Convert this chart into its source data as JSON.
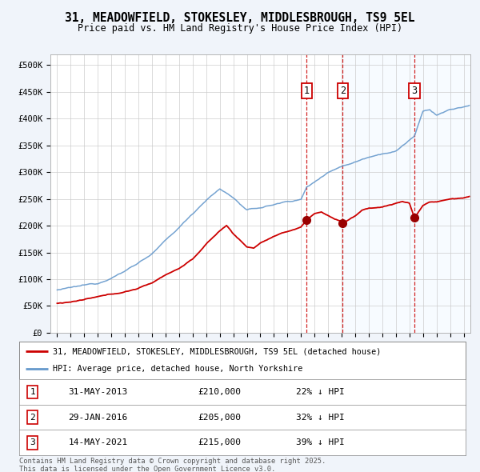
{
  "title": "31, MEADOWFIELD, STOKESLEY, MIDDLESBROUGH, TS9 5EL",
  "subtitle": "Price paid vs. HM Land Registry's House Price Index (HPI)",
  "background_color": "#f0f4fa",
  "plot_bg_color": "#ffffff",
  "ylim": [
    0,
    520000
  ],
  "yticks": [
    0,
    50000,
    100000,
    150000,
    200000,
    250000,
    300000,
    350000,
    400000,
    450000,
    500000
  ],
  "ytick_labels": [
    "£0",
    "£50K",
    "£100K",
    "£150K",
    "£200K",
    "£250K",
    "£300K",
    "£350K",
    "£400K",
    "£450K",
    "£500K"
  ],
  "xlim_start": 1994.5,
  "xlim_end": 2025.5,
  "xticks": [
    1995,
    1996,
    1997,
    1998,
    1999,
    2000,
    2001,
    2002,
    2003,
    2004,
    2005,
    2006,
    2007,
    2008,
    2009,
    2010,
    2011,
    2012,
    2013,
    2014,
    2015,
    2016,
    2017,
    2018,
    2019,
    2020,
    2021,
    2022,
    2023,
    2024,
    2025
  ],
  "sale_points": [
    {
      "date_year": 2013.42,
      "price": 210000,
      "label": "1",
      "date_str": "31-MAY-2013",
      "pct": "22%"
    },
    {
      "date_year": 2016.08,
      "price": 205000,
      "label": "2",
      "date_str": "29-JAN-2016",
      "pct": "32%"
    },
    {
      "date_year": 2021.37,
      "price": 215000,
      "label": "3",
      "date_str": "14-MAY-2021",
      "pct": "39%"
    }
  ],
  "hpi_color": "#6699cc",
  "price_color": "#cc0000",
  "vline_color": "#cc0000",
  "shade_color": "#ddeeff",
  "footer_text": "Contains HM Land Registry data © Crown copyright and database right 2025.\nThis data is licensed under the Open Government Licence v3.0.",
  "legend_line1": "31, MEADOWFIELD, STOKESLEY, MIDDLESBROUGH, TS9 5EL (detached house)",
  "legend_line2": "HPI: Average price, detached house, North Yorkshire"
}
